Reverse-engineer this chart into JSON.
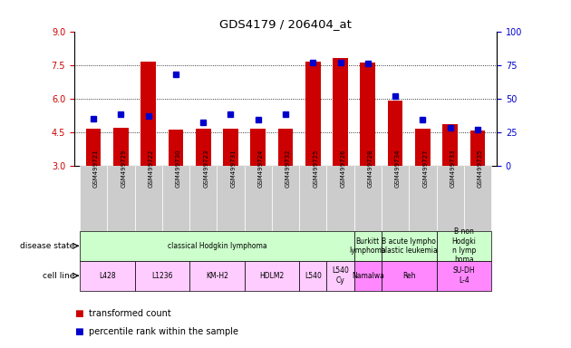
{
  "title": "GDS4179 / 206404_at",
  "samples": [
    "GSM499721",
    "GSM499729",
    "GSM499722",
    "GSM499730",
    "GSM499723",
    "GSM499731",
    "GSM499724",
    "GSM499732",
    "GSM499725",
    "GSM499726",
    "GSM499728",
    "GSM499734",
    "GSM499727",
    "GSM499733",
    "GSM499735"
  ],
  "transformed_counts": [
    4.65,
    4.7,
    7.65,
    4.6,
    4.65,
    4.65,
    4.65,
    4.65,
    7.65,
    7.8,
    7.6,
    5.9,
    4.65,
    4.85,
    4.55
  ],
  "percentile_ranks": [
    35,
    38,
    37,
    68,
    32,
    38,
    34,
    38,
    77,
    77,
    76,
    52,
    34,
    28,
    27
  ],
  "ylim_left": [
    3,
    9
  ],
  "ylim_right": [
    0,
    100
  ],
  "yticks_left": [
    3,
    4.5,
    6,
    7.5,
    9
  ],
  "yticks_right": [
    0,
    25,
    50,
    75,
    100
  ],
  "bar_color": "#cc0000",
  "dot_color": "#0000cc",
  "sample_box_color": "#cccccc",
  "disease_state_groups": [
    {
      "label": "classical Hodgkin lymphoma",
      "start": 0,
      "end": 9,
      "color": "#ccffcc"
    },
    {
      "label": "Burkitt\nlymphoma",
      "start": 10,
      "end": 10,
      "color": "#ccffcc"
    },
    {
      "label": "B acute lympho\nblastic leukemia",
      "start": 11,
      "end": 12,
      "color": "#ccffcc"
    },
    {
      "label": "B non\nHodgki\nn lymp\nhoma",
      "start": 13,
      "end": 14,
      "color": "#ccffcc"
    }
  ],
  "cell_line_groups": [
    {
      "label": "L428",
      "start": 0,
      "end": 1,
      "color": "#ffccff"
    },
    {
      "label": "L1236",
      "start": 2,
      "end": 3,
      "color": "#ffccff"
    },
    {
      "label": "KM-H2",
      "start": 4,
      "end": 5,
      "color": "#ffccff"
    },
    {
      "label": "HDLM2",
      "start": 6,
      "end": 7,
      "color": "#ffccff"
    },
    {
      "label": "L540",
      "start": 8,
      "end": 8,
      "color": "#ffccff"
    },
    {
      "label": "L540\nCy",
      "start": 9,
      "end": 9,
      "color": "#ffccff"
    },
    {
      "label": "Namalwa",
      "start": 10,
      "end": 10,
      "color": "#ff88ff"
    },
    {
      "label": "Reh",
      "start": 11,
      "end": 12,
      "color": "#ff88ff"
    },
    {
      "label": "SU-DH\nL-4",
      "start": 13,
      "end": 14,
      "color": "#ff88ff"
    }
  ],
  "bg_color": "#ffffff",
  "tick_label_color_left": "#cc0000",
  "tick_label_color_right": "#0000cc",
  "grid_dotted_vals": [
    4.5,
    6.0,
    7.5
  ],
  "legend_items": [
    {
      "color": "#cc0000",
      "label": "transformed count"
    },
    {
      "color": "#0000cc",
      "label": "percentile rank within the sample"
    }
  ]
}
